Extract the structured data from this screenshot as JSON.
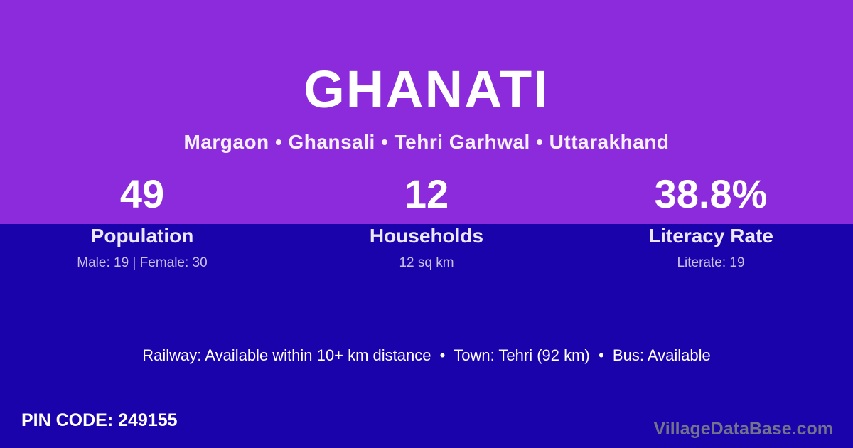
{
  "colors": {
    "top_background": "#8B2BDB",
    "bottom_background": "#1A03AB",
    "text_primary": "#FFFFFF",
    "text_label": "#ECE7FA",
    "text_muted": "#C8C0E8",
    "watermark": "#73738C"
  },
  "header": {
    "title": "GHANATI",
    "subtitle": "Margaon • Ghansali • Tehri Garhwal • Uttarakhand"
  },
  "stats": [
    {
      "value": "49",
      "label": "Population",
      "detail": "Male: 19 | Female: 30"
    },
    {
      "value": "12",
      "label": "Households",
      "detail": "12 sq km"
    },
    {
      "value": "38.8%",
      "label": "Literacy Rate",
      "detail": "Literate: 19"
    }
  ],
  "amenities": {
    "line": "Railway: Available within 10+ km distance  •  Town: Tehri (92 km)  •  Bus: Available"
  },
  "footer": {
    "pin": "PIN CODE: 249155",
    "watermark": "VillageDataBase.com"
  }
}
